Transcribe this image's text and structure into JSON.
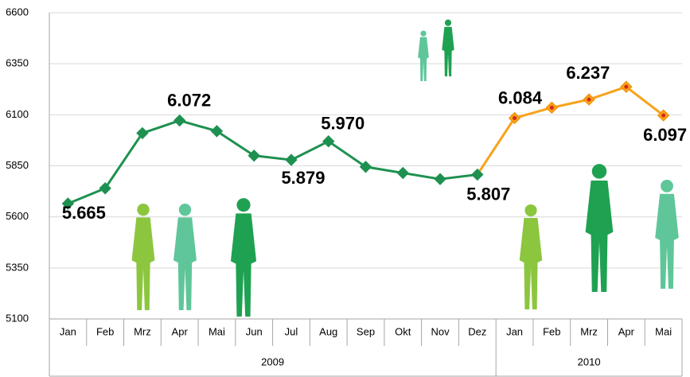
{
  "chart_data": {
    "type": "line",
    "groups": [
      {
        "name": "2009",
        "categories": [
          "Jan",
          "Feb",
          "Mrz",
          "Apr",
          "Mai",
          "Jun",
          "Jul",
          "Aug",
          "Sep",
          "Okt",
          "Nov",
          "Dez"
        ]
      },
      {
        "name": "2010",
        "categories": [
          "Jan",
          "Feb",
          "Mrz",
          "Apr",
          "Mai"
        ]
      }
    ],
    "series": [
      {
        "color": "#1e9150",
        "values": [
          5665,
          5740,
          6010,
          6072,
          6020,
          5900,
          5879,
          5970,
          5845,
          5815,
          5785,
          5807,
          null,
          null,
          null,
          null,
          null
        ],
        "value_labels": [
          "5.665",
          null,
          null,
          "6.072",
          null,
          null,
          "5.879",
          "5.970",
          null,
          null,
          null,
          "5.807",
          null,
          null,
          null,
          null,
          null
        ]
      },
      {
        "color": "#f7a21b",
        "values": [
          null,
          null,
          null,
          null,
          null,
          null,
          null,
          null,
          null,
          null,
          null,
          5807,
          6084,
          6135,
          6175,
          6237,
          6097
        ],
        "value_labels": [
          null,
          null,
          null,
          null,
          null,
          null,
          null,
          null,
          null,
          null,
          null,
          null,
          "6.084",
          null,
          null,
          "6.237",
          "6.097"
        ]
      }
    ],
    "ylim": [
      5100,
      6600
    ],
    "yticks": [
      5100,
      5350,
      5600,
      5850,
      6100,
      6350,
      6600
    ],
    "grid": true
  }
}
